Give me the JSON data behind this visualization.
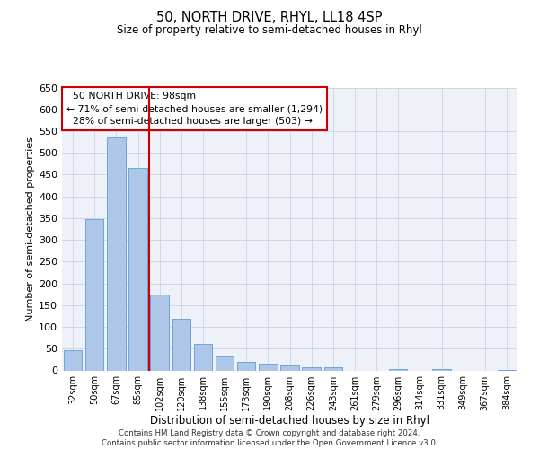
{
  "title": "50, NORTH DRIVE, RHYL, LL18 4SP",
  "subtitle": "Size of property relative to semi-detached houses in Rhyl",
  "xlabel": "Distribution of semi-detached houses by size in Rhyl",
  "ylabel": "Number of semi-detached properties",
  "bins": [
    "32sqm",
    "50sqm",
    "67sqm",
    "85sqm",
    "102sqm",
    "120sqm",
    "138sqm",
    "155sqm",
    "173sqm",
    "190sqm",
    "208sqm",
    "226sqm",
    "243sqm",
    "261sqm",
    "279sqm",
    "296sqm",
    "314sqm",
    "331sqm",
    "349sqm",
    "367sqm",
    "384sqm"
  ],
  "values": [
    46,
    348,
    535,
    465,
    175,
    118,
    60,
    35,
    20,
    15,
    12,
    8,
    7,
    0,
    0,
    4,
    0,
    3,
    0,
    0,
    1
  ],
  "bar_color": "#aec6e8",
  "bar_edge_color": "#5a9fd4",
  "property_label": "50 NORTH DRIVE: 98sqm",
  "pct_smaller": "71%",
  "n_smaller": "1,294",
  "pct_larger": "28%",
  "n_larger": "503",
  "annotation_box_color": "#cc0000",
  "ylim": [
    0,
    650
  ],
  "yticks": [
    0,
    50,
    100,
    150,
    200,
    250,
    300,
    350,
    400,
    450,
    500,
    550,
    600,
    650
  ],
  "footer_line1": "Contains HM Land Registry data © Crown copyright and database right 2024.",
  "footer_line2": "Contains public sector information licensed under the Open Government Licence v3.0.",
  "bg_color": "#eef2f8",
  "grid_color": "#c8d4e8"
}
